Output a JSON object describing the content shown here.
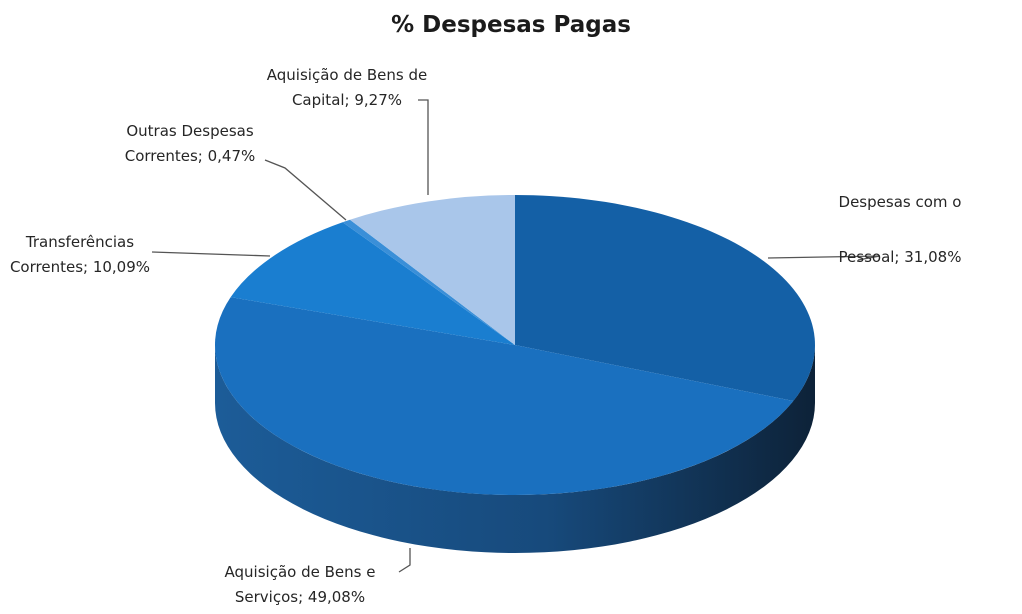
{
  "chart_data": {
    "type": "pie",
    "title": "% Despesas Pagas",
    "slices": [
      {
        "name": "Despesas com o Pessoal",
        "value": 31.08,
        "label_lines": [
          "Despesas com o",
          "Pessoal; 31,08%"
        ],
        "color": "#1460a6"
      },
      {
        "name": "Aquisição de Bens e Serviços",
        "value": 49.08,
        "label_lines": [
          "Aquisição de Bens e",
          "Serviços; 49,08%"
        ],
        "color": "#1a70bf"
      },
      {
        "name": "Transferências Correntes",
        "value": 10.09,
        "label_lines": [
          "Transferências",
          "Correntes; 10,09%"
        ],
        "color": "#1a7ed0"
      },
      {
        "name": "Outras Despesas Correntes",
        "value": 0.47,
        "label_lines": [
          "Outras Despesas",
          "Correntes; 0,47%"
        ],
        "color": "#3a8fd8"
      },
      {
        "name": "Aquisição de Bens de Capital",
        "value": 9.27,
        "label_lines": [
          "Aquisição de Bens de",
          "Capital; 9,27%"
        ],
        "color": "#a9c6ea"
      }
    ],
    "style": "3d-pie"
  }
}
